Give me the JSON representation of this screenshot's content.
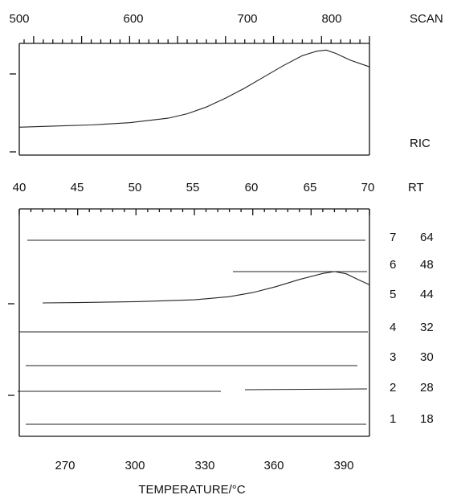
{
  "chart_data": [
    {
      "type": "line",
      "panel": "top",
      "top_axis": {
        "label": "SCAN",
        "ticks": [
          500,
          600,
          700,
          800
        ],
        "range": [
          485,
          850
        ]
      },
      "series": [
        {
          "name": "RIC",
          "x": [
            485,
            520,
            560,
            600,
            640,
            660,
            680,
            700,
            720,
            740,
            760,
            780,
            795,
            805,
            815,
            830,
            850
          ],
          "y": [
            0.25,
            0.26,
            0.27,
            0.29,
            0.33,
            0.37,
            0.43,
            0.51,
            0.6,
            0.7,
            0.8,
            0.89,
            0.93,
            0.94,
            0.91,
            0.85,
            0.79
          ]
        }
      ]
    },
    {
      "type": "line",
      "panel": "bottom",
      "top_axis": {
        "label": "RT",
        "ticks": [
          40,
          45,
          50,
          55,
          60,
          65,
          70
        ],
        "range": [
          40,
          70
        ]
      },
      "x_axis": {
        "label": "TEMPERATURE/°C",
        "ticks": [
          270,
          300,
          330,
          360,
          390
        ],
        "range": [
          254,
          403
        ]
      },
      "traces": [
        {
          "index": "7",
          "value": "64"
        },
        {
          "index": "6",
          "value": "48"
        },
        {
          "index": "5",
          "value": "44",
          "x": [
            42,
            45,
            50,
            55,
            58,
            60,
            62,
            64,
            66,
            67,
            68,
            69,
            70
          ],
          "y": [
            0,
            0.01,
            0.04,
            0.1,
            0.2,
            0.33,
            0.52,
            0.75,
            0.94,
            1.0,
            0.93,
            0.75,
            0.58
          ]
        },
        {
          "index": "4",
          "value": "32"
        },
        {
          "index": "3",
          "value": "30"
        },
        {
          "index": "2",
          "value": "28"
        },
        {
          "index": "1",
          "value": "18"
        }
      ]
    }
  ]
}
